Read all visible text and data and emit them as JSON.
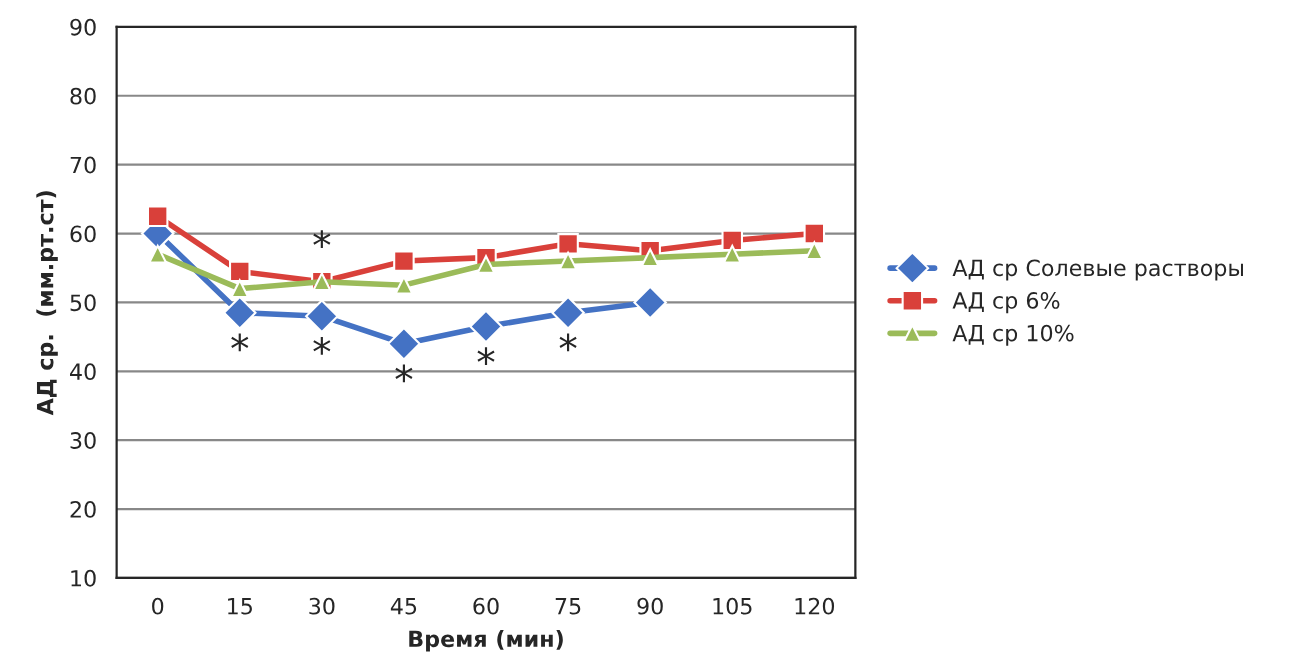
{
  "chart_data": {
    "type": "line",
    "xlabel": "Время (мин)",
    "ylabel": "АД ср.  (мм.рт.ст)",
    "categories": [
      "0",
      "15",
      "30",
      "45",
      "60",
      "75",
      "90",
      "105",
      "120"
    ],
    "series": [
      {
        "name": "АД ср Солевые растворы",
        "color": "#4472c4",
        "marker": "diamond",
        "values": [
          60,
          48.5,
          48,
          44,
          46.5,
          48.5,
          50,
          null,
          null
        ]
      },
      {
        "name": "АД ср 6%",
        "color": "#d9403a",
        "marker": "square",
        "values": [
          62.5,
          54.5,
          53,
          56,
          56.5,
          58.5,
          57.5,
          59,
          60
        ]
      },
      {
        "name": "АД ср 10%",
        "color": "#9bbb59",
        "marker": "triangle",
        "values": [
          57,
          52,
          53,
          52.5,
          55.5,
          56,
          56.5,
          57,
          57.5
        ]
      }
    ],
    "ylim": [
      10,
      90
    ],
    "yticks": [
      10,
      20,
      30,
      40,
      50,
      60,
      70,
      80,
      90
    ],
    "grid": "y",
    "legend": "right",
    "line_style": "solid",
    "annotations": [
      {
        "text": "*",
        "x": "15",
        "y": 48.5
      },
      {
        "text": "*",
        "x": "30",
        "y": 48
      },
      {
        "text": "*",
        "x": "30",
        "y": 53
      },
      {
        "text": "*",
        "x": "45",
        "y": 44
      },
      {
        "text": "*",
        "x": "60",
        "y": 46.5
      },
      {
        "text": "*",
        "x": "75",
        "y": 48.5
      }
    ]
  }
}
